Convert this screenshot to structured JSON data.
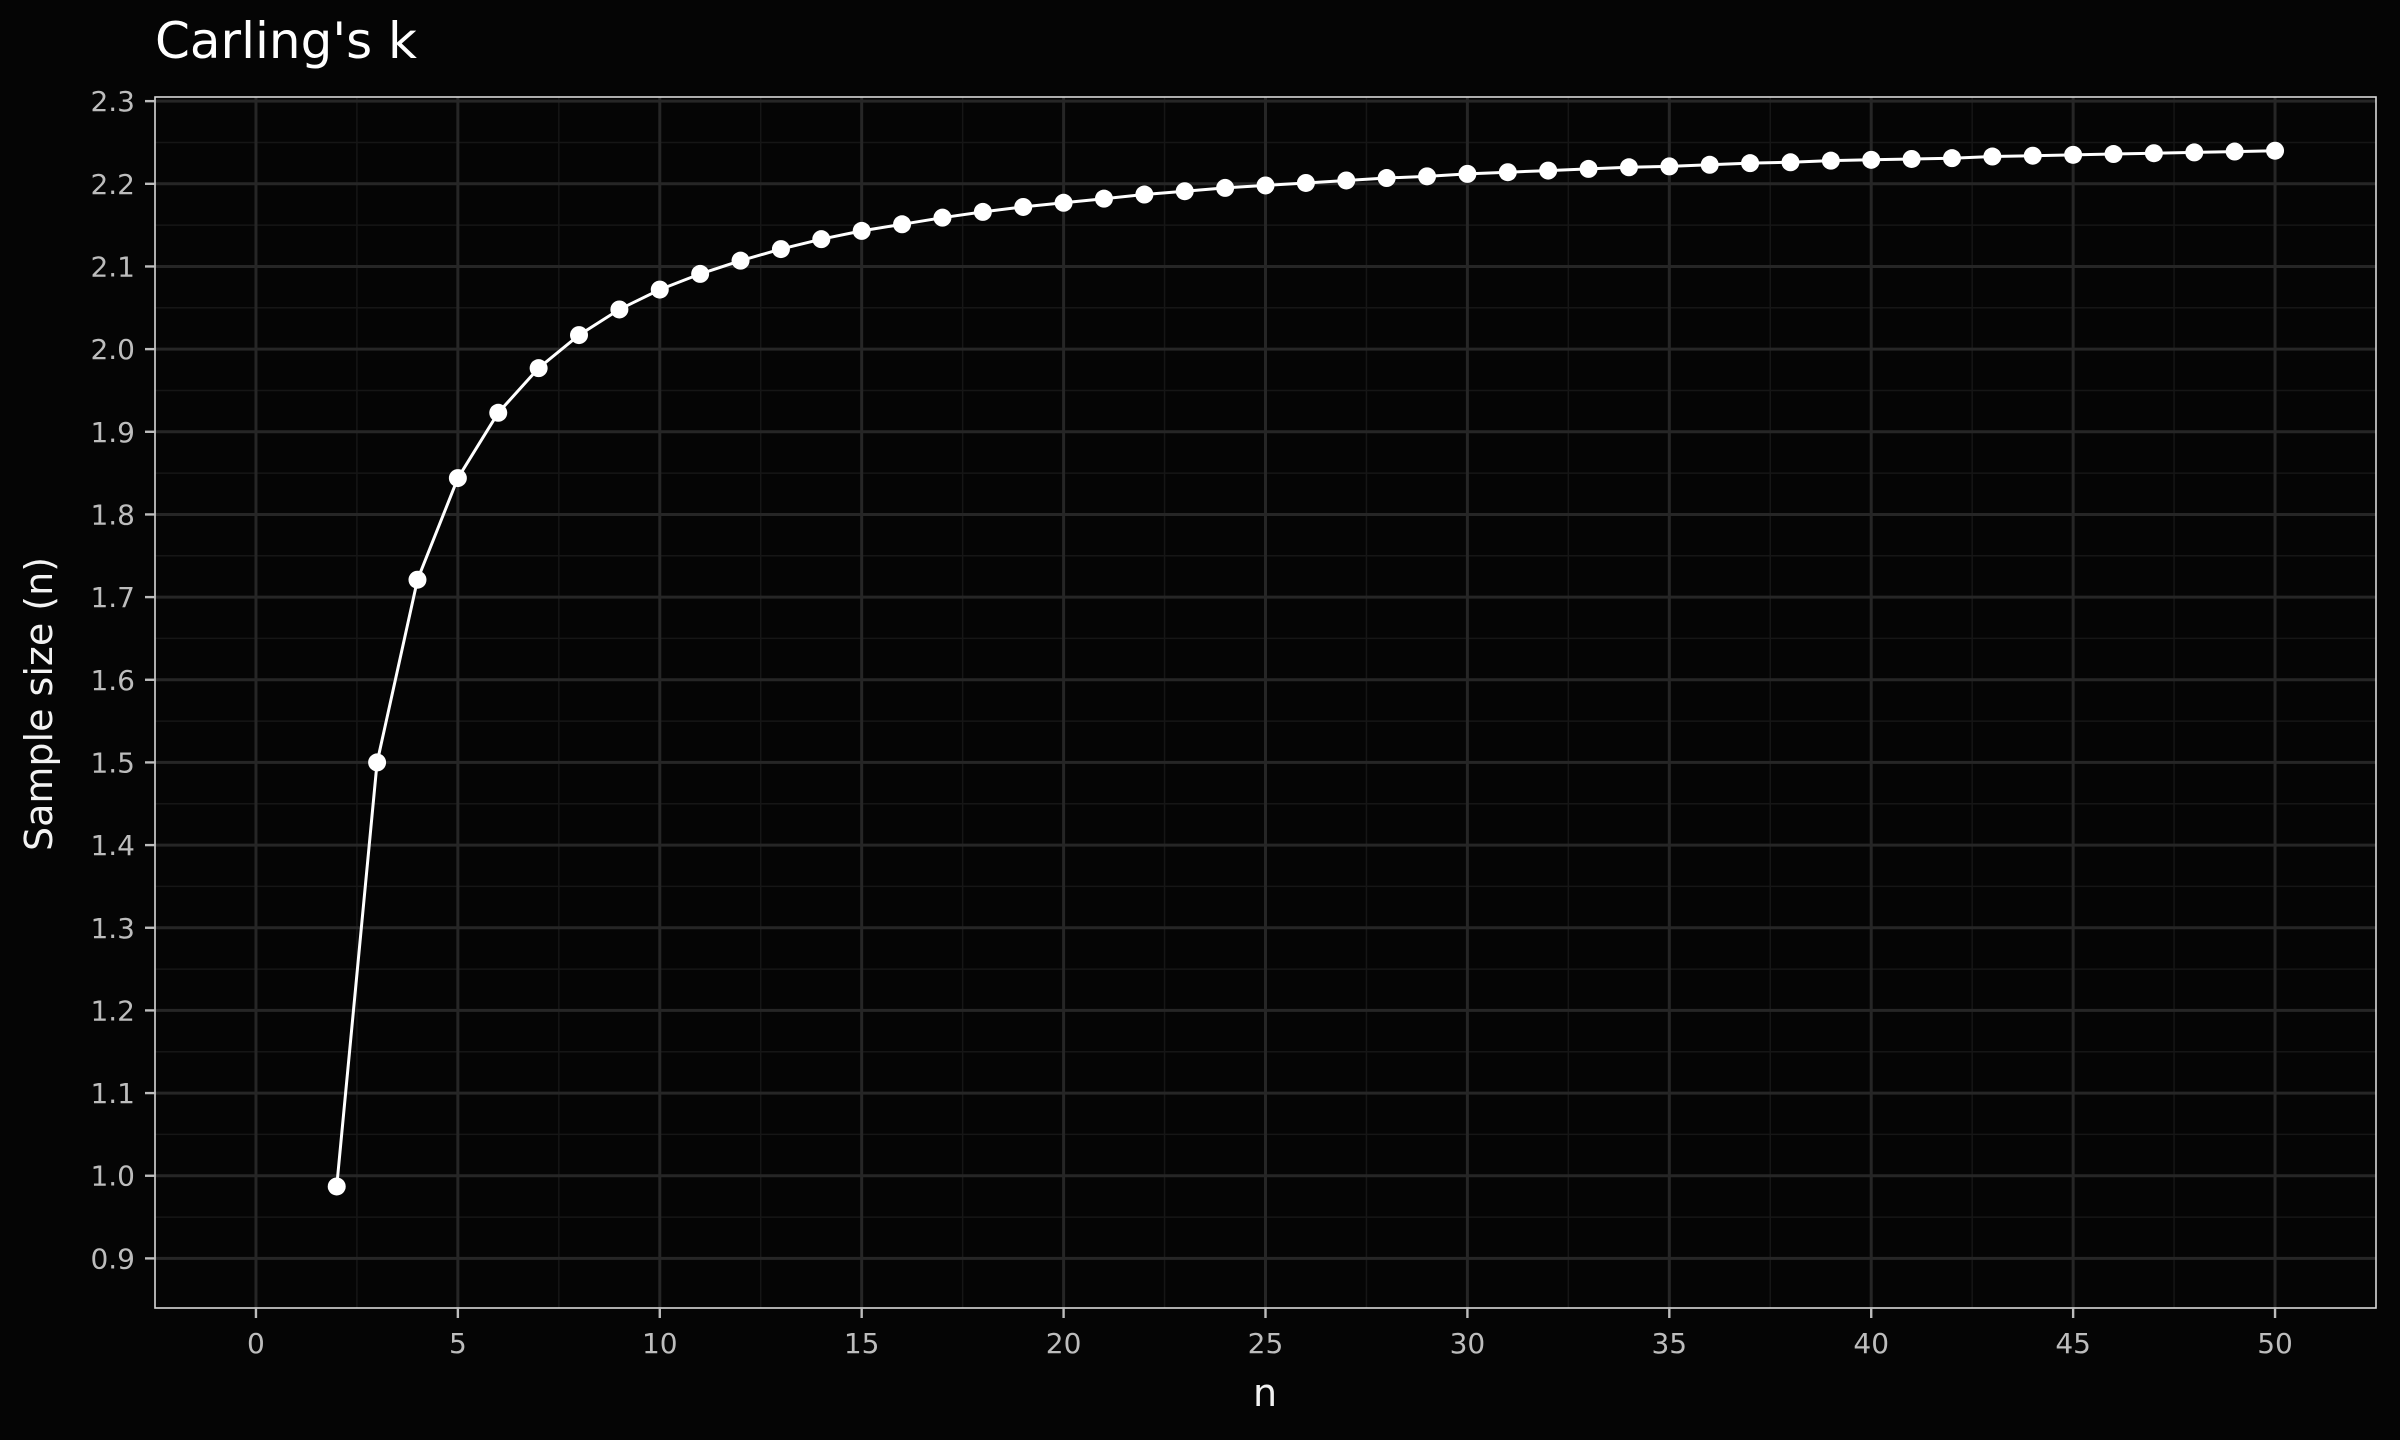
{
  "chart_data": {
    "type": "line",
    "title": "Carling's k",
    "xlabel": "n",
    "ylabel": "Sample size (n)",
    "xlim": [
      -2.5,
      52.5
    ],
    "ylim": [
      0.84,
      2.305
    ],
    "x_ticks": [
      "0",
      "5",
      "10",
      "15",
      "20",
      "25",
      "30",
      "35",
      "40",
      "45",
      "50"
    ],
    "y_ticks": [
      "0.9",
      "1.0",
      "1.1",
      "1.2",
      "1.3",
      "1.4",
      "1.5",
      "1.6",
      "1.7",
      "1.8",
      "1.9",
      "2.0",
      "2.1",
      "2.2",
      "2.3"
    ],
    "grid": true,
    "legend": "none",
    "colors": {
      "background": "#050505",
      "series": "#ffffff",
      "grid_major": "#262626",
      "grid_minor": "#161616",
      "tick_text": "#bdbdbd"
    },
    "series": [
      {
        "x": [
          2,
          3,
          4,
          5,
          6,
          7,
          8,
          9,
          10,
          11,
          12,
          13,
          14,
          15,
          16,
          17,
          18,
          19,
          20,
          21,
          22,
          23,
          24,
          25,
          26,
          27,
          28,
          29,
          30,
          31,
          32,
          33,
          34,
          35,
          36,
          37,
          38,
          39,
          40,
          41,
          42,
          43,
          44,
          45,
          46,
          47,
          48,
          49,
          50
        ],
        "values": [
          0.987,
          1.5,
          1.721,
          1.844,
          1.923,
          1.977,
          2.017,
          2.048,
          2.072,
          2.091,
          2.107,
          2.121,
          2.133,
          2.143,
          2.151,
          2.159,
          2.166,
          2.172,
          2.177,
          2.182,
          2.187,
          2.191,
          2.195,
          2.198,
          2.201,
          2.204,
          2.207,
          2.209,
          2.212,
          2.214,
          2.216,
          2.218,
          2.22,
          2.221,
          2.223,
          2.225,
          2.226,
          2.228,
          2.229,
          2.23,
          2.231,
          2.233,
          2.234,
          2.235,
          2.236,
          2.237,
          2.238,
          2.239,
          2.24
        ]
      }
    ]
  }
}
